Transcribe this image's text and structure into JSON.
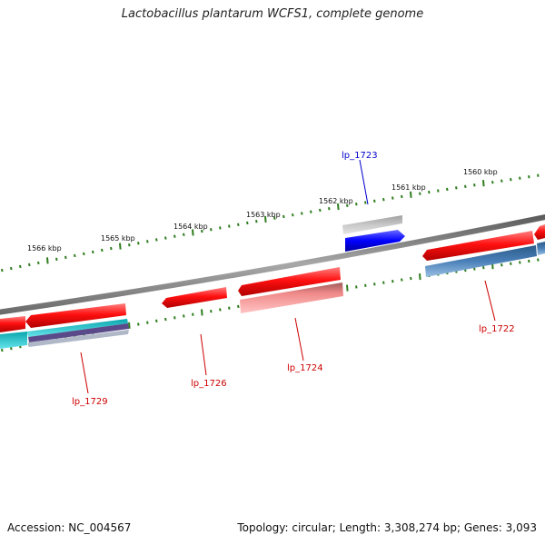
{
  "title": "Lactobacillus plantarum WCFS1, complete genome",
  "footer": {
    "accession": "Accession: NC_004567",
    "topology": "Topology: circular; Length: 3,308,274 bp; Genes: 3,093"
  },
  "scale_labels": [
    "1566 kbp",
    "1565 kbp",
    "1564 kbp",
    "1563 kbp",
    "1562 kbp",
    "1561 kbp",
    "1560 kbp"
  ],
  "gene_labels": [
    {
      "text": "lp_1723",
      "color": "#0000cc"
    },
    {
      "text": "lp_1722",
      "color": "#cc0000"
    },
    {
      "text": "lp_1724",
      "color": "#cc0000"
    },
    {
      "text": "lp_1726",
      "color": "#cc0000"
    },
    {
      "text": "lp_1729",
      "color": "#cc0000"
    }
  ],
  "colors": {
    "backbone": "#808080",
    "tick_mark": "#2e7d1e",
    "cds_forward": "#ee1111",
    "cds_highlight": "#1a1aff",
    "feature_grey": "#b0b0b0",
    "feature_pink": "#f08080",
    "feature_steel": "#4a7fb5",
    "feature_cyan": "#20c0c8",
    "feature_purple": "#5a4a8a"
  }
}
